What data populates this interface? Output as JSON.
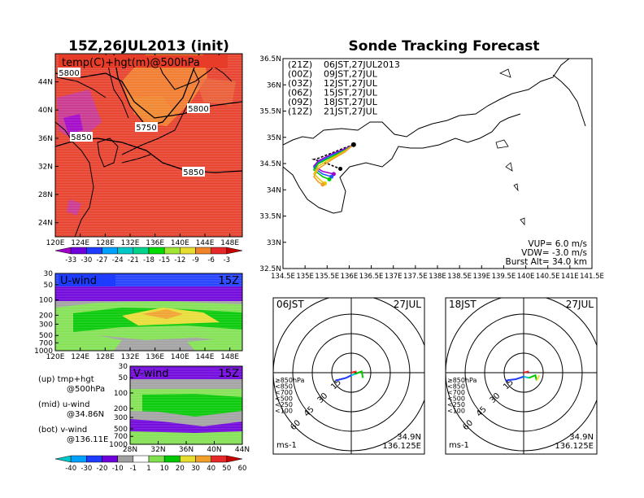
{
  "left_panel": {
    "title": "15Z,26JUL2013 (init)",
    "map_label": "temp(C)+hgt(m)@500hPa",
    "lat_ticks": [
      "44N",
      "40N",
      "36N",
      "32N",
      "28N",
      "24N"
    ],
    "lon_ticks": [
      "120E",
      "124E",
      "128E",
      "132E",
      "136E",
      "140E",
      "144E",
      "148E"
    ],
    "contour_labels": [
      "5800",
      "5800",
      "5750",
      "5850",
      "5850"
    ],
    "temp_colorbar": [
      "-33",
      "-30",
      "-27",
      "-24",
      "-21",
      "-18",
      "-15",
      "-12",
      "-9",
      "-6",
      "-3"
    ],
    "temp_colors": [
      "#a000c8",
      "#6e00dc",
      "#1e3cff",
      "#00a0ff",
      "#00c8c8",
      "#00d28c",
      "#00dc00",
      "#a0e632",
      "#e6dc32",
      "#f08228",
      "#e62828",
      "#c80000"
    ]
  },
  "uwind_panel": {
    "label": "U-wind",
    "time": "15Z",
    "pressure_ticks": [
      "30",
      "50",
      "100",
      "200",
      "300",
      "500",
      "700",
      "1000"
    ],
    "lon_ticks": [
      "120E",
      "124E",
      "128E",
      "132E",
      "136E",
      "140E",
      "144E",
      "148E"
    ]
  },
  "vwind_panel": {
    "label": "V-wind",
    "time": "15Z",
    "pressure_ticks": [
      "30",
      "50",
      "100",
      "200",
      "300",
      "500",
      "700",
      "1000"
    ],
    "lat_ticks": [
      "28N",
      "32N",
      "36N",
      "40N",
      "44N"
    ]
  },
  "legend_notes": [
    {
      "a": "(up) tmp+hgt",
      "b": "@500hPa"
    },
    {
      "a": "(mid) u-wind",
      "b": "@34.86N"
    },
    {
      "a": "(bot) v-wind",
      "b": "@136.11E"
    }
  ],
  "wind_colorbar": [
    "-40",
    "-30",
    "-20",
    "-10",
    "-1",
    "1",
    "10",
    "20",
    "30",
    "40",
    "50",
    "60"
  ],
  "wind_colors": [
    "#00c8c8",
    "#00a0ff",
    "#1e3cff",
    "#6e00dc",
    "#a0a0a0",
    "#ffffff",
    "#80e050",
    "#00c800",
    "#e6dc32",
    "#f0a028",
    "#e62828",
    "#c80000"
  ],
  "tracking": {
    "title": "Sonde Tracking Forecast",
    "lat_ticks": [
      "36.5N",
      "36N",
      "35.5N",
      "35N",
      "34.5N",
      "34N",
      "33.5N",
      "33N",
      "32.5N"
    ],
    "lon_ticks": [
      "134.5E",
      "135E",
      "135.5E",
      "136E",
      "136.5E",
      "137E",
      "137.5E",
      "138E",
      "138.5E",
      "139E",
      "139.5E",
      "140E",
      "140.5E",
      "141E",
      "141.5E"
    ],
    "launches": [
      {
        "code": "(21Z)",
        "label": "06JST,27JUL2013",
        "color": "#000000"
      },
      {
        "code": "(00Z)",
        "label": "09JST,27JUL",
        "color": "#a000c8"
      },
      {
        "code": "(03Z)",
        "label": "12JST,27JUL",
        "color": "#1e5aff"
      },
      {
        "code": "(06Z)",
        "label": "15JST,27JUL",
        "color": "#00c800"
      },
      {
        "code": "(09Z)",
        "label": "18JST,27JUL",
        "color": "#e6c800"
      },
      {
        "code": "(12Z)",
        "label": "21JST,27JUL",
        "color": "#f0a028"
      }
    ],
    "params": [
      "VUP=  6.0  m/s",
      "VDW= -3.0  m/s",
      "Burst Alt=  34.0  km"
    ]
  },
  "polar_left": {
    "time": "06JST",
    "date": "27JUL",
    "ring_labels": [
      "15",
      "30",
      "45",
      "60"
    ],
    "legend": [
      {
        "text": "≥850hPa",
        "color": "#e62828"
      },
      {
        "text": "<850",
        "color": "#f0a028"
      },
      {
        "text": "<700",
        "color": "#e6dc32"
      },
      {
        "text": "<500",
        "color": "#00c800"
      },
      {
        "text": "<250",
        "color": "#00c8c8"
      },
      {
        "text": "<100",
        "color": "#1e3cff"
      }
    ],
    "unit": "ms-1",
    "lat": "34.9N",
    "lon": "136.125E"
  },
  "polar_right": {
    "time": "18JST",
    "date": "27JUL",
    "ring_labels": [
      "15",
      "30",
      "45",
      "60"
    ],
    "legend": [
      {
        "text": "≥850hPa",
        "color": "#e62828"
      },
      {
        "text": "<850",
        "color": "#f0a028"
      },
      {
        "text": "<700",
        "color": "#e6dc32"
      },
      {
        "text": "<500",
        "color": "#00c800"
      },
      {
        "text": "<250",
        "color": "#00c8c8"
      },
      {
        "text": "<100",
        "color": "#1e3cff"
      }
    ],
    "unit": "ms-1",
    "lat": "34.9N",
    "lon": "136.125E"
  },
  "chart_data": [
    {
      "type": "heatmap",
      "title": "15Z,26JUL2013 (init)",
      "subtitle": "temp(C)+hgt(m)@500hPa",
      "xlim": [
        120,
        150
      ],
      "ylim": [
        22,
        48
      ],
      "contour_levels": [
        5750,
        5800,
        5850
      ],
      "colorbar_levels": [
        -33,
        -30,
        -27,
        -24,
        -21,
        -18,
        -15,
        -12,
        -9,
        -6,
        -3
      ]
    },
    {
      "type": "heatmap",
      "title": "U-wind",
      "ylim": [
        1000,
        30
      ],
      "xlim": [
        120,
        150
      ],
      "colorbar_levels": [
        -40,
        -30,
        -20,
        -10,
        -1,
        1,
        10,
        20,
        30,
        40,
        50,
        60
      ]
    },
    {
      "type": "heatmap",
      "title": "V-wind",
      "ylim": [
        1000,
        30
      ],
      "xlim": [
        28,
        44
      ]
    },
    {
      "type": "line",
      "title": "Sonde Tracking Forecast",
      "xlim": [
        134.5,
        141.5
      ],
      "ylim": [
        32.5,
        36.5
      ],
      "launch_point": [
        136.1,
        34.86
      ],
      "series": [
        {
          "name": "(21Z) 06JST,27JUL2013",
          "x": [
            136.1,
            135.9,
            135.6,
            135.3,
            135.2,
            135.5,
            135.8
          ],
          "y": [
            34.86,
            34.8,
            34.7,
            34.6,
            34.58,
            34.5,
            34.4
          ]
        },
        {
          "name": "(00Z) 09JST,27JUL",
          "x": [
            136.1,
            135.9,
            135.6,
            135.3,
            135.2,
            135.4,
            135.65
          ],
          "y": [
            34.86,
            34.78,
            34.68,
            34.55,
            34.45,
            34.35,
            34.3
          ]
        },
        {
          "name": "(03Z) 12JST,27JUL",
          "x": [
            136.1,
            135.9,
            135.6,
            135.3,
            135.2,
            135.4,
            135.6
          ],
          "y": [
            34.86,
            34.76,
            34.66,
            34.52,
            34.42,
            34.3,
            34.25
          ]
        },
        {
          "name": "(06Z) 15JST,27JUL",
          "x": [
            136.1,
            135.9,
            135.6,
            135.3,
            135.2,
            135.4,
            135.55
          ],
          "y": [
            34.86,
            34.75,
            34.63,
            34.5,
            34.38,
            34.25,
            34.2
          ]
        },
        {
          "name": "(09Z) 18JST,27JUL",
          "x": [
            136.1,
            135.9,
            135.6,
            135.3,
            135.2,
            135.35,
            135.45
          ],
          "y": [
            34.86,
            34.74,
            34.6,
            34.45,
            34.3,
            34.18,
            34.12
          ]
        },
        {
          "name": "(12Z) 21JST,27JUL",
          "x": [
            136.1,
            135.9,
            135.6,
            135.3,
            135.2,
            135.3,
            135.4
          ],
          "y": [
            34.86,
            34.72,
            34.57,
            34.4,
            34.25,
            34.15,
            34.1
          ]
        }
      ]
    },
    {
      "type": "line",
      "title": "06JST 27JUL",
      "ring_levels": [
        15,
        30,
        45,
        60
      ],
      "series": [
        {
          "name": "<100",
          "color": "#1e3cff",
          "x": [
            -12,
            -4,
            0
          ],
          "y": [
            -6,
            -4,
            -2
          ]
        },
        {
          "name": "<250",
          "color": "#00c8c8",
          "x": [
            0,
            3
          ],
          "y": [
            -2,
            -1
          ]
        },
        {
          "name": "<500",
          "color": "#00c800",
          "x": [
            3,
            8,
            9
          ],
          "y": [
            -1,
            1,
            -4
          ]
        },
        {
          "name": "≥850hPa",
          "color": "#e62828",
          "x": [
            0,
            4
          ],
          "y": [
            0,
            1
          ]
        }
      ]
    },
    {
      "type": "line",
      "title": "18JST 27JUL",
      "ring_levels": [
        15,
        30,
        45,
        60
      ],
      "series": [
        {
          "name": "<100",
          "color": "#1e3cff",
          "x": [
            -14,
            -6,
            0
          ],
          "y": [
            -6,
            -5,
            -3
          ]
        },
        {
          "name": "<250",
          "color": "#00c8c8",
          "x": [
            0,
            4
          ],
          "y": [
            -3,
            -4
          ]
        },
        {
          "name": "<500",
          "color": "#00c800",
          "x": [
            4,
            9,
            10
          ],
          "y": [
            -4,
            -2,
            -6
          ]
        },
        {
          "name": "<700",
          "color": "#e6dc32",
          "x": [
            10,
            12
          ],
          "y": [
            -6,
            -2
          ]
        },
        {
          "name": "≥850hPa",
          "color": "#e62828",
          "x": [
            0,
            4
          ],
          "y": [
            0,
            1
          ]
        }
      ]
    }
  ]
}
